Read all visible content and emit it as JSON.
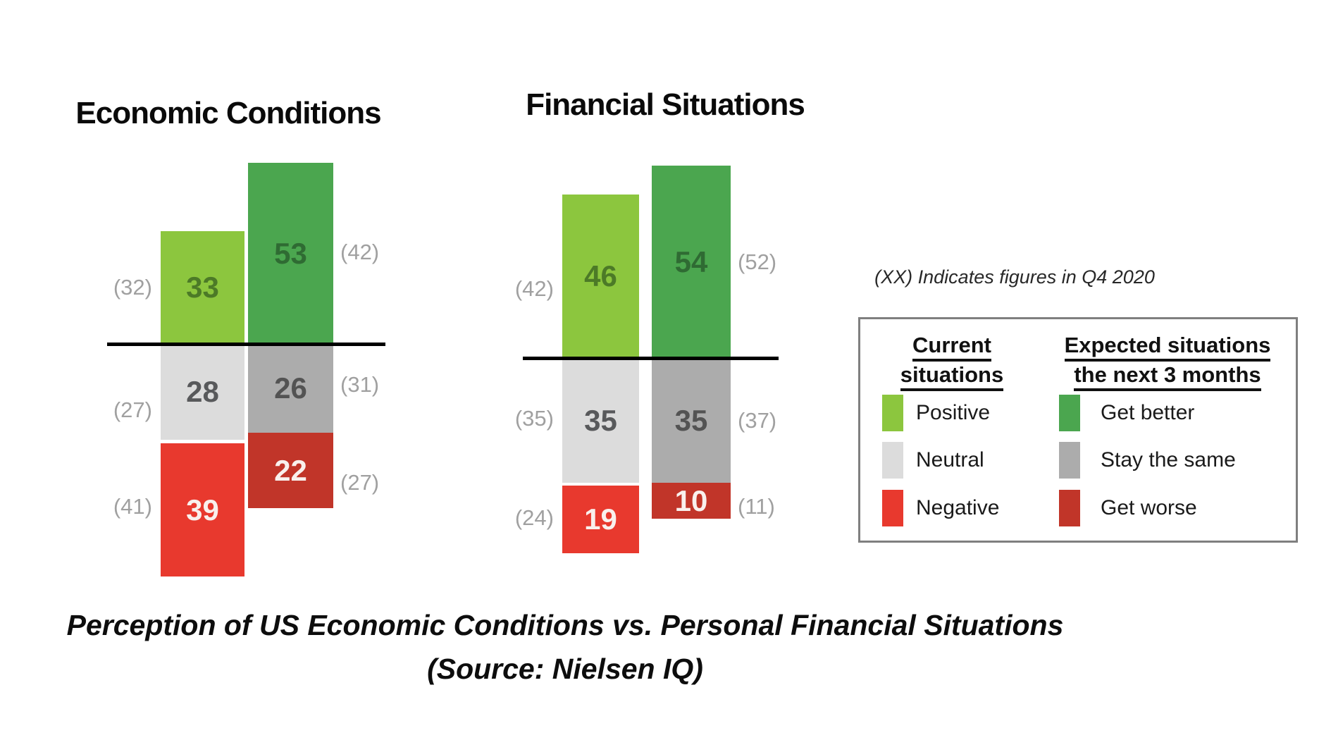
{
  "note": "(XX) Indicates figures in Q4 2020",
  "caption": {
    "line1": "Perception of US Economic Conditions vs. Personal Financial Situations",
    "line2": "(Source: Nielsen IQ)"
  },
  "colors": {
    "positive": "#8CC63E",
    "neutral": "#DCDCDC",
    "negative": "#E8392E",
    "get_better": "#4BA64F",
    "stay_same": "#ACACAC",
    "get_worse": "#C13529",
    "baseline": "#000000",
    "q4_label_text": "#A0A0A0"
  },
  "value_label_colors": {
    "positive": "#4C7A27",
    "neutral": "#58595B",
    "negative": "#F9F0ED",
    "get_better": "#2F6B33",
    "stay_same": "#535353",
    "get_worse": "#F9F0ED"
  },
  "legend": {
    "columns": [
      {
        "title_lines": [
          "Current",
          "situations"
        ],
        "items": [
          {
            "label": "Positive",
            "color_key": "positive"
          },
          {
            "label": "Neutral",
            "color_key": "neutral"
          },
          {
            "label": "Negative",
            "color_key": "negative"
          }
        ]
      },
      {
        "title_lines": [
          "Expected situations",
          "the next 3 months"
        ],
        "items": [
          {
            "label": "Get better",
            "color_key": "get_better"
          },
          {
            "label": "Stay the same",
            "color_key": "stay_same"
          },
          {
            "label": "Get worse",
            "color_key": "get_worse"
          }
        ]
      }
    ]
  },
  "chart_data": [
    {
      "type": "bar",
      "variant": "diverging-stacked",
      "title": "Economic Conditions",
      "baseline_value": 0,
      "note": "values are current quarter; parenthesized values are Q4 2020",
      "series": [
        {
          "name": "Current situations",
          "segments": [
            {
              "key": "positive",
              "category": "Positive",
              "value": 33,
              "q4_2020": 32
            },
            {
              "key": "neutral",
              "category": "Neutral",
              "value": 28,
              "q4_2020": 27
            },
            {
              "key": "negative",
              "category": "Negative",
              "value": 39,
              "q4_2020": 41
            }
          ]
        },
        {
          "name": "Expected situations the next 3 months",
          "segments": [
            {
              "key": "get_better",
              "category": "Get better",
              "value": 53,
              "q4_2020": 42
            },
            {
              "key": "stay_same",
              "category": "Stay the same",
              "value": 26,
              "q4_2020": 31
            },
            {
              "key": "get_worse",
              "category": "Get worse",
              "value": 22,
              "q4_2020": 27
            }
          ]
        }
      ]
    },
    {
      "type": "bar",
      "variant": "diverging-stacked",
      "title": "Financial Situations",
      "baseline_value": 0,
      "note": "values are current quarter; parenthesized values are Q4 2020",
      "series": [
        {
          "name": "Current situations",
          "segments": [
            {
              "key": "positive",
              "category": "Positive",
              "value": 46,
              "q4_2020": 42
            },
            {
              "key": "neutral",
              "category": "Neutral",
              "value": 35,
              "q4_2020": 35
            },
            {
              "key": "negative",
              "category": "Negative",
              "value": 19,
              "q4_2020": 24
            }
          ]
        },
        {
          "name": "Expected situations the next 3 months",
          "segments": [
            {
              "key": "get_better",
              "category": "Get better",
              "value": 54,
              "q4_2020": 52
            },
            {
              "key": "stay_same",
              "category": "Stay the same",
              "value": 35,
              "q4_2020": 37
            },
            {
              "key": "get_worse",
              "category": "Get worse",
              "value": 10,
              "q4_2020": 11
            }
          ]
        }
      ]
    }
  ]
}
